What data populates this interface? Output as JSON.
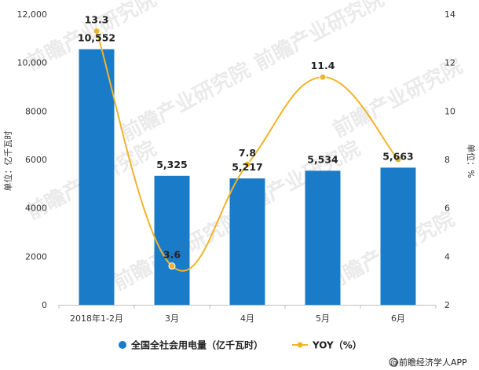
{
  "chart_data": {
    "type": "bar",
    "categories": [
      "2018年1-2月",
      "3月",
      "4月",
      "5月",
      "6月"
    ],
    "series": [
      {
        "name": "全国全社会用电量（亿千瓦时）",
        "type": "bar",
        "axis": "left",
        "values": [
          10552,
          5325,
          5217,
          5534,
          5663
        ],
        "labels": [
          "10,552",
          "5,325",
          "5,217",
          "5,534",
          "5,663"
        ],
        "color": "#1a7cc9"
      },
      {
        "name": "YOY（%）",
        "type": "line",
        "axis": "right",
        "values": [
          13.3,
          3.6,
          7.8,
          11.4,
          8.0
        ],
        "labels": [
          "13.3",
          "3.6",
          "7.8",
          "11.4",
          ""
        ],
        "color": "#f0b429"
      }
    ],
    "ylabel": "单位：亿千瓦时",
    "y2label": "单位：%",
    "ylim": [
      0,
      12000
    ],
    "y2lim": [
      2,
      14
    ],
    "yticks": [
      "0",
      "2000",
      "4000",
      "6000",
      "8000",
      "10,000",
      "12,000"
    ],
    "y2ticks": [
      "2",
      "4",
      "6",
      "8",
      "10",
      "12",
      "14"
    ],
    "grid": false,
    "legend": "bottom"
  },
  "watermark": "前瞻产业研究院",
  "footer": {
    "source": "@前瞻经济学人APP"
  }
}
